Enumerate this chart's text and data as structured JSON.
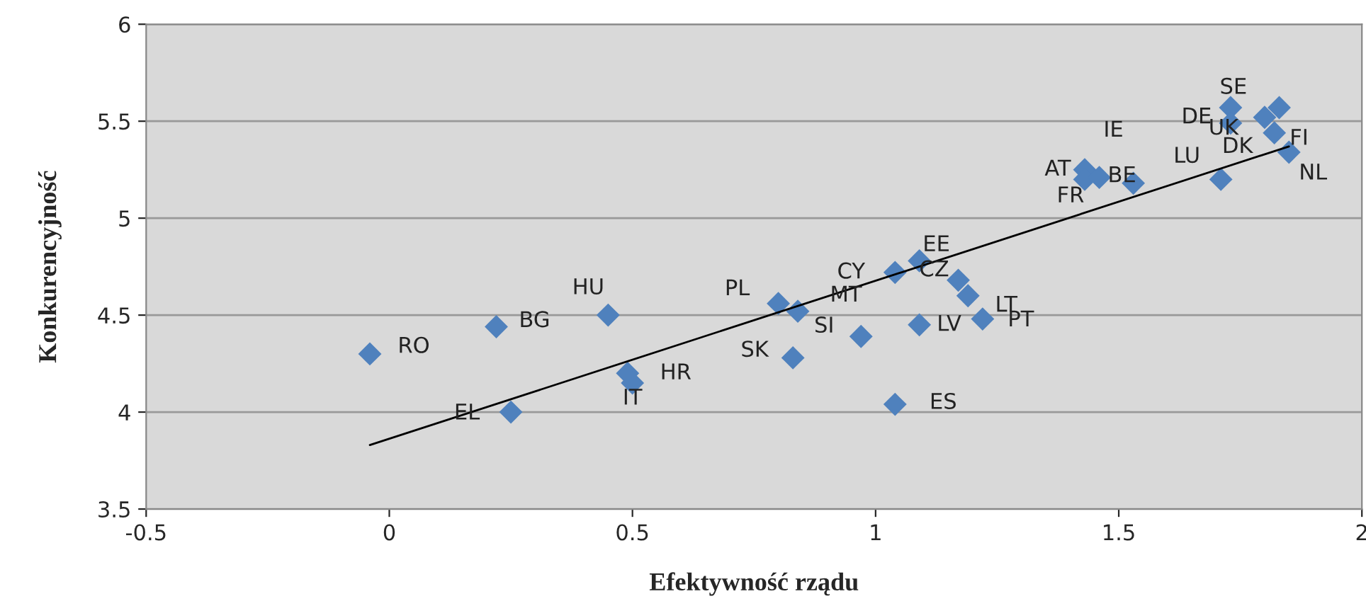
{
  "chart_data": {
    "type": "scatter",
    "xlabel": "Efektywność rządu",
    "ylabel": "Konkurencyjność",
    "xlim": [
      -0.5,
      2
    ],
    "ylim": [
      3.5,
      6
    ],
    "xticks": [
      -0.5,
      0,
      0.5,
      1,
      1.5,
      2
    ],
    "yticks": [
      3.5,
      4,
      4.5,
      5,
      5.5,
      6
    ],
    "grid": "y",
    "legend": false,
    "series": [
      {
        "color": "#4f81bd",
        "marker": "diamond",
        "x": [
          -0.04,
          0.22,
          0.45,
          0.49,
          0.5,
          0.25,
          0.8,
          0.84,
          0.83,
          0.97,
          1.04,
          1.04,
          1.09,
          1.17,
          1.19,
          1.09,
          1.22,
          1.43,
          1.43,
          1.46,
          1.53,
          1.71,
          1.73,
          1.73,
          1.83,
          1.8,
          1.82,
          1.85
        ],
        "values": [
          4.3,
          4.44,
          4.5,
          4.2,
          4.15,
          4.0,
          4.56,
          4.52,
          4.28,
          4.39,
          4.04,
          4.72,
          4.78,
          4.68,
          4.6,
          4.45,
          4.48,
          5.25,
          5.2,
          5.21,
          5.18,
          5.2,
          5.57,
          5.49,
          5.57,
          5.52,
          5.44,
          5.34
        ]
      },
      {
        "type": "line",
        "color": "#000000",
        "line_style": "solid",
        "x": [
          -0.04,
          1.85
        ],
        "values": [
          3.83,
          5.37
        ]
      }
    ],
    "annotations": [
      {
        "text": "SE",
        "x": 1.73,
        "y": 5.57
      },
      {
        "text": "DE",
        "x": 1.73,
        "y": 5.49
      },
      {
        "text": "UK",
        "x": 1.8,
        "y": 5.52
      },
      {
        "text": "IE",
        "x": 1.46,
        "y": 5.21
      },
      {
        "text": "DK",
        "x": 1.82,
        "y": 5.44
      },
      {
        "text": "FI",
        "x": 1.83,
        "y": 5.57
      },
      {
        "text": "LU",
        "x": 1.71,
        "y": 5.2
      },
      {
        "text": "NL",
        "x": 1.85,
        "y": 5.34
      },
      {
        "text": "AT",
        "x": 1.43,
        "y": 5.25
      },
      {
        "text": "BE",
        "x": 1.53,
        "y": 5.18
      },
      {
        "text": "FR",
        "x": 1.43,
        "y": 5.2
      },
      {
        "text": "EE",
        "x": 1.09,
        "y": 4.78
      },
      {
        "text": "CY",
        "x": 1.04,
        "y": 4.72
      },
      {
        "text": "CZ",
        "x": 1.17,
        "y": 4.68
      },
      {
        "text": "PL",
        "x": 0.8,
        "y": 4.56
      },
      {
        "text": "MT",
        "x": 0.84,
        "y": 4.52
      },
      {
        "text": "LT",
        "x": 1.19,
        "y": 4.6
      },
      {
        "text": "SI",
        "x": 0.97,
        "y": 4.39
      },
      {
        "text": "LV",
        "x": 1.09,
        "y": 4.45
      },
      {
        "text": "PT",
        "x": 1.22,
        "y": 4.48
      },
      {
        "text": "SK",
        "x": 0.83,
        "y": 4.28
      },
      {
        "text": "ES",
        "x": 1.04,
        "y": 4.04
      },
      {
        "text": "HU",
        "x": 0.45,
        "y": 4.5
      },
      {
        "text": "BG",
        "x": 0.22,
        "y": 4.44
      },
      {
        "text": "RO",
        "x": -0.04,
        "y": 4.3
      },
      {
        "text": "HR",
        "x": 0.49,
        "y": 4.2
      },
      {
        "text": "IT",
        "x": 0.5,
        "y": 4.15
      },
      {
        "text": "EL",
        "x": 0.25,
        "y": 4.0
      }
    ]
  }
}
